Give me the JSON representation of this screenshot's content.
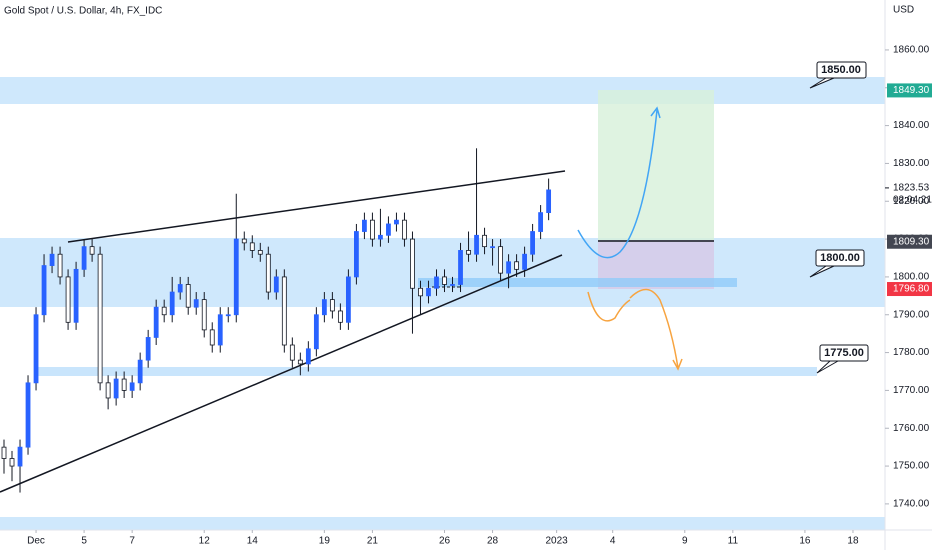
{
  "chart_data": {
    "type": "candlestick",
    "title": "Gold Spot / U.S. Dollar, 4h, FX_IDC",
    "y_unit": "USD",
    "up_color": "#2962ff",
    "down_color": "#ffffff",
    "outline_color": "#131722",
    "open": [
      1755,
      1752,
      1750,
      1755,
      1772,
      1790,
      1803,
      1806,
      1800,
      1788,
      1802,
      1808,
      1806,
      1772,
      1768,
      1773,
      1770,
      1772,
      1778,
      1784,
      1792,
      1790,
      1796,
      1798,
      1792,
      1794,
      1786,
      1782,
      1790,
      1790,
      1810,
      1809,
      1807,
      1806,
      1796,
      1800,
      1782,
      1778,
      1777,
      1781,
      1790,
      1794,
      1791,
      1788,
      1800,
      1812,
      1815,
      1810,
      1811,
      1814,
      1815,
      1810,
      1797,
      1795,
      1797,
      1800,
      1798,
      1798,
      1807,
      1806,
      1811,
      1808,
      1808,
      1801,
      1804,
      1802,
      1806,
      1812,
      1817
    ],
    "high": [
      1757,
      1754,
      1757,
      1774,
      1792,
      1806,
      1808,
      1808,
      1802,
      1804,
      1810,
      1810,
      1808,
      1774,
      1775,
      1775,
      1774,
      1780,
      1786,
      1794,
      1794,
      1800,
      1800,
      1800,
      1796,
      1796,
      1788,
      1792,
      1792,
      1822,
      1812,
      1811,
      1809,
      1808,
      1802,
      1802,
      1784,
      1780,
      1783,
      1792,
      1796,
      1796,
      1793,
      1802,
      1814,
      1817,
      1817,
      1818,
      1816,
      1817,
      1817,
      1812,
      1799,
      1799,
      1802,
      1802,
      1800,
      1809,
      1812,
      1834,
      1813,
      1810,
      1810,
      1806,
      1806,
      1808,
      1814,
      1819,
      1826
    ],
    "low": [
      1748,
      1746,
      1743,
      1753,
      1770,
      1788,
      1801,
      1798,
      1786,
      1786,
      1800,
      1804,
      1770,
      1765,
      1766,
      1768,
      1768,
      1770,
      1776,
      1782,
      1788,
      1788,
      1794,
      1790,
      1790,
      1784,
      1780,
      1780,
      1788,
      1788,
      1807,
      1805,
      1804,
      1794,
      1794,
      1780,
      1776,
      1774,
      1775,
      1779,
      1788,
      1789,
      1786,
      1786,
      1798,
      1810,
      1808,
      1808,
      1809,
      1812,
      1808,
      1785,
      1790,
      1793,
      1795,
      1796,
      1796,
      1796,
      1804,
      1804,
      1806,
      1803,
      1799,
      1797,
      1800,
      1800,
      1804,
      1810,
      1815
    ],
    "close": [
      1752,
      1750,
      1755,
      1772,
      1790,
      1803,
      1806,
      1800,
      1788,
      1802,
      1808,
      1806,
      1772,
      1768,
      1773,
      1770,
      1772,
      1778,
      1784,
      1792,
      1790,
      1796,
      1798,
      1792,
      1794,
      1786,
      1782,
      1790,
      1790,
      1810,
      1809,
      1807,
      1806,
      1796,
      1800,
      1782,
      1778,
      1777,
      1781,
      1790,
      1794,
      1791,
      1788,
      1800,
      1812,
      1815,
      1810,
      1811,
      1814,
      1815,
      1810,
      1797,
      1795,
      1797,
      1800,
      1798,
      1798,
      1807,
      1806,
      1811,
      1808,
      1808,
      1801,
      1804,
      1802,
      1806,
      1812,
      1817,
      1823
    ],
    "xlim": [
      -0.5,
      110
    ],
    "xticks": [
      {
        "value": 4,
        "label": "Dec"
      },
      {
        "value": 10,
        "label": "5"
      },
      {
        "value": 16,
        "label": "7"
      },
      {
        "value": 25,
        "label": "12"
      },
      {
        "value": 31,
        "label": "14"
      },
      {
        "value": 40,
        "label": "19"
      },
      {
        "value": 46,
        "label": "21"
      },
      {
        "value": 55,
        "label": "26"
      },
      {
        "value": 61,
        "label": "28"
      },
      {
        "value": 69,
        "label": "2023"
      },
      {
        "value": 76,
        "label": "4"
      },
      {
        "value": 85,
        "label": "9"
      },
      {
        "value": 91,
        "label": "11"
      },
      {
        "value": 100,
        "label": "16"
      },
      {
        "value": 106,
        "label": "18"
      }
    ],
    "ylim": [
      1733.1,
      1873.2
    ],
    "yticks": [
      {
        "value": 1740,
        "label": "1740.00"
      },
      {
        "value": 1750,
        "label": "1750.00"
      },
      {
        "value": 1760,
        "label": "1760.00"
      },
      {
        "value": 1770,
        "label": "1770.00"
      },
      {
        "value": 1780,
        "label": "1780.00"
      },
      {
        "value": 1790,
        "label": "1790.00"
      },
      {
        "value": 1800,
        "label": "1800.00"
      },
      {
        "value": 1810,
        "label": "1810.00"
      },
      {
        "value": 1820,
        "label": "1820.00"
      },
      {
        "value": 1830,
        "label": "1830.00"
      },
      {
        "value": 1840,
        "label": "1840.00"
      },
      {
        "value": 1850,
        "label": "1850.00"
      },
      {
        "value": 1860,
        "label": "1860.00"
      }
    ],
    "price_labels": [
      {
        "value": 1849.3,
        "label": "1849.30",
        "color": "#22ab94"
      },
      {
        "value": 1823.53,
        "label": "1823.53"
      },
      {
        "value": 1809.3,
        "label": "1809.30",
        "color": "#434651"
      },
      {
        "value": 1796.8,
        "label": "1796.80",
        "color": "#f23645"
      }
    ],
    "countdown": "02:04:21",
    "annotations": [
      "1850.00",
      "1800.00",
      "1775.00"
    ]
  }
}
